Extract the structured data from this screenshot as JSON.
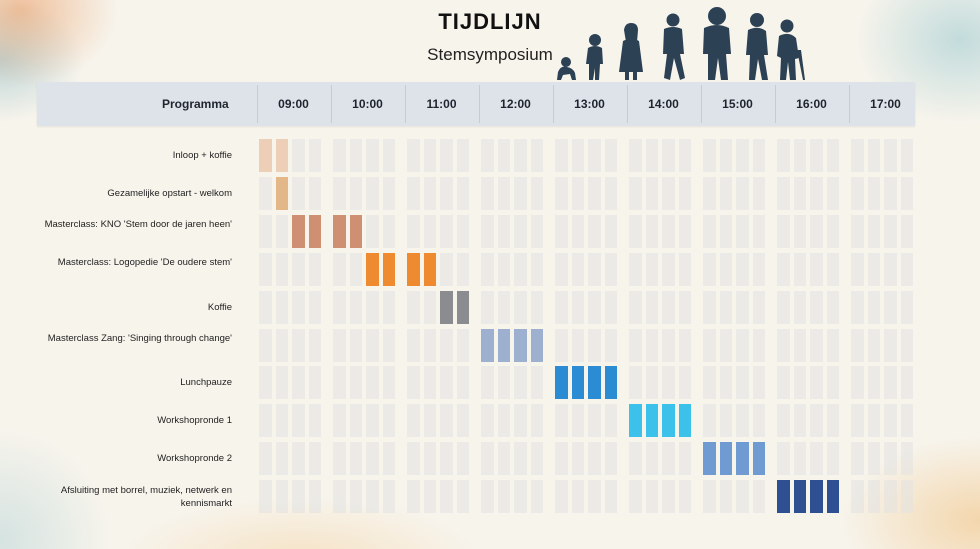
{
  "header": {
    "title": "TIJDLIJN",
    "subtitle": "Stemsymposium",
    "column_label": "Programma"
  },
  "timeline": {
    "times": [
      "09:00",
      "10:00",
      "11:00",
      "12:00",
      "13:00",
      "14:00",
      "15:00",
      "16:00",
      "17:00"
    ],
    "rows": [
      {
        "label": "Inloop + koffie",
        "slots": [
          0,
          1
        ],
        "color": "#eccfb6"
      },
      {
        "label": "Gezamelijke opstart - welkom",
        "slots": [
          1
        ],
        "color": "#e4b788"
      },
      {
        "label": "Masterclass: KNO 'Stem door de jaren heen'",
        "slots": [
          2,
          3,
          4,
          5
        ],
        "color": "#cf8f72"
      },
      {
        "label": "Masterclass: Logopedie 'De oudere stem'",
        "slots": [
          6,
          7,
          8,
          9
        ],
        "color": "#ee8a2f"
      },
      {
        "label": "Koffie",
        "slots": [
          10,
          11
        ],
        "color": "#8a8c8f"
      },
      {
        "label": "Masterclass Zang: 'Singing through change'",
        "slots": [
          12,
          13,
          14,
          15
        ],
        "color": "#9eb0cf"
      },
      {
        "label": "Lunchpauze",
        "slots": [
          16,
          17,
          18,
          19
        ],
        "color": "#2b8bd3"
      },
      {
        "label": "Workshopronde 1",
        "slots": [
          20,
          21,
          22,
          23
        ],
        "color": "#3bc1ea"
      },
      {
        "label": "Workshopronde 2",
        "slots": [
          24,
          25,
          26,
          27
        ],
        "color": "#6f9ad2"
      },
      {
        "label": "Afsluiting met borrel, muziek, netwerk en kennismarkt",
        "slots": [
          28,
          29,
          30,
          31
        ],
        "color": "#2e4f92"
      }
    ]
  },
  "decoration": {
    "silhouette_icon": "human-evolution-aging-icon",
    "silhouette_color": "#2d4155"
  }
}
